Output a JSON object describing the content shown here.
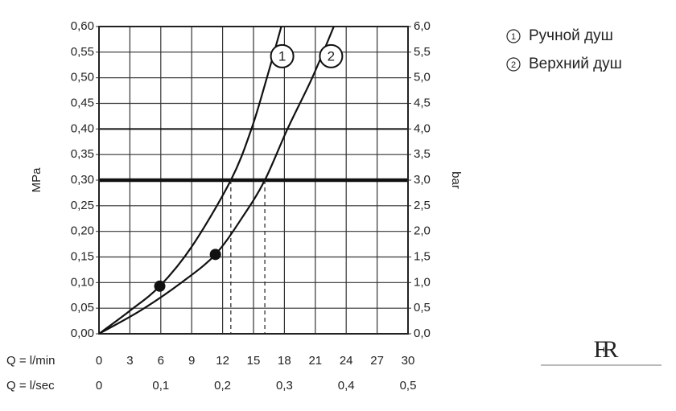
{
  "chart_data": {
    "type": "line",
    "y_label": "MPa",
    "y2_label": "bar",
    "x_label": "Q = l/min",
    "x2_label": "Q = l/sec",
    "xlim": [
      0,
      30
    ],
    "xticks": [
      0,
      3,
      6,
      9,
      12,
      15,
      18,
      21,
      24,
      27,
      30
    ],
    "x2lim": [
      0,
      0.5
    ],
    "x2ticks": [
      0,
      {
        "value": 0.1,
        "label": "0,1"
      },
      {
        "value": 0.2,
        "label": "0,2"
      },
      {
        "value": 0.3,
        "label": "0,3"
      },
      {
        "value": 0.4,
        "label": "0,4"
      },
      {
        "value": 0.5,
        "label": "0,5"
      }
    ],
    "ylim": [
      0,
      0.6
    ],
    "yticks": [
      {
        "value": 0,
        "label": "0,00"
      },
      {
        "value": 0.05,
        "label": "0,05"
      },
      {
        "value": 0.1,
        "label": "0,10"
      },
      {
        "value": 0.15,
        "label": "0,15"
      },
      {
        "value": 0.2,
        "label": "0,20"
      },
      {
        "value": 0.25,
        "label": "0,25"
      },
      {
        "value": 0.3,
        "label": "0,30"
      },
      {
        "value": 0.35,
        "label": "0,35"
      },
      {
        "value": 0.4,
        "label": "0,40"
      },
      {
        "value": 0.45,
        "label": "0,45"
      },
      {
        "value": 0.5,
        "label": "0,50"
      },
      {
        "value": 0.55,
        "label": "0,55"
      },
      {
        "value": 0.6,
        "label": "0,60"
      }
    ],
    "y2lim": [
      0,
      6
    ],
    "y2ticks": [
      {
        "value": 0,
        "label": "0,0"
      },
      {
        "value": 0.5,
        "label": "0,5"
      },
      {
        "value": 1,
        "label": "1,0"
      },
      {
        "value": 1.5,
        "label": "1,5"
      },
      {
        "value": 2,
        "label": "2,0"
      },
      {
        "value": 2.5,
        "label": "2,5"
      },
      {
        "value": 3,
        "label": "3,0"
      },
      {
        "value": 3.5,
        "label": "3,5"
      },
      {
        "value": 4,
        "label": "4,0"
      },
      {
        "value": 4.5,
        "label": "4,5"
      },
      {
        "value": 5,
        "label": "5,0"
      },
      {
        "value": 5.5,
        "label": "5,5"
      },
      {
        "value": 6,
        "label": "6,0"
      }
    ],
    "grid": true,
    "reference_lines": [
      {
        "y": 0.3,
        "style": "heavy"
      },
      {
        "y": 0.4,
        "style": "medium"
      }
    ],
    "series": [
      {
        "name": "Ручной душ",
        "label": "1",
        "color": "#111111",
        "x": [
          0,
          3,
          5.9,
          9,
          12.8,
          14.8,
          16.3,
          17.7
        ],
        "values": [
          0,
          0.045,
          0.093,
          0.17,
          0.3,
          0.4,
          0.5,
          0.6
        ],
        "marker_index": 2,
        "dropline_index": 4
      },
      {
        "name": "Верхний душ",
        "label": "2",
        "color": "#111111",
        "x": [
          0,
          4,
          8,
          11.3,
          14,
          16.1,
          18.3,
          20.7,
          22.8
        ],
        "values": [
          0,
          0.045,
          0.1,
          0.155,
          0.23,
          0.3,
          0.4,
          0.5,
          0.6
        ],
        "marker_index": 3,
        "dropline_index": 5
      }
    ],
    "legend": "top-right",
    "logo": "FR"
  }
}
